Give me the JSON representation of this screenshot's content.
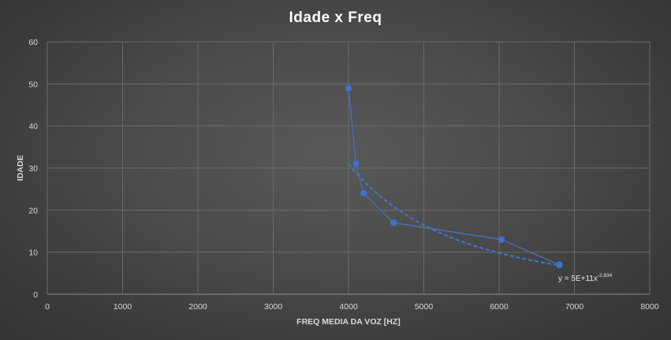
{
  "chart_data": {
    "type": "scatter",
    "title": "Idade x Freq",
    "xlabel": "FREQ MEDIA DA VOZ [HZ]",
    "ylabel": "IDADE",
    "xlim": [
      0,
      8000
    ],
    "ylim": [
      0,
      60
    ],
    "xticks": [
      "0",
      "1000",
      "2000",
      "3000",
      "4000",
      "5000",
      "6000",
      "7000",
      "8000"
    ],
    "yticks": [
      "0",
      "10",
      "20",
      "30",
      "40",
      "50",
      "60"
    ],
    "grid": true,
    "series": [
      {
        "points": [
          {
            "x": 4000,
            "y": 49
          },
          {
            "x": 4100,
            "y": 31
          },
          {
            "x": 4200,
            "y": 24
          },
          {
            "x": 4600,
            "y": 17
          },
          {
            "x": 6030,
            "y": 13
          },
          {
            "x": 6800,
            "y": 7
          }
        ],
        "color": "#4472c4",
        "connected": true
      }
    ],
    "trendline": {
      "type": "power",
      "equation": {
        "base": "y = 5E+11x",
        "exponent": "-2,834"
      },
      "coefficient": 500000000000,
      "exponent": -2.834,
      "color": "#4472c4",
      "x_from": 4000,
      "x_to": 6800
    }
  }
}
